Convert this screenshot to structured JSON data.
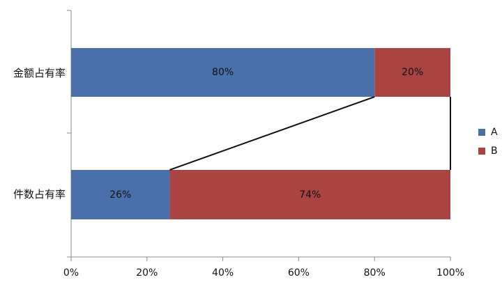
{
  "chart_data": {
    "type": "bar",
    "orientation": "horizontal",
    "stacked": "percent",
    "categories": [
      "金额占有率",
      "件数占有率"
    ],
    "series": [
      {
        "name": "A",
        "values": [
          80,
          26
        ],
        "labels": [
          "80%",
          "26%"
        ],
        "color": "#4A70AC"
      },
      {
        "name": "B",
        "values": [
          20,
          74
        ],
        "labels": [
          "20%",
          "74%"
        ],
        "color": "#A94442"
      }
    ],
    "xlim": [
      0,
      100
    ],
    "xticks": [
      "0%",
      "20%",
      "40%",
      "60%",
      "80%",
      "100%"
    ],
    "grid": false,
    "legend": "right",
    "series_lines": true
  }
}
